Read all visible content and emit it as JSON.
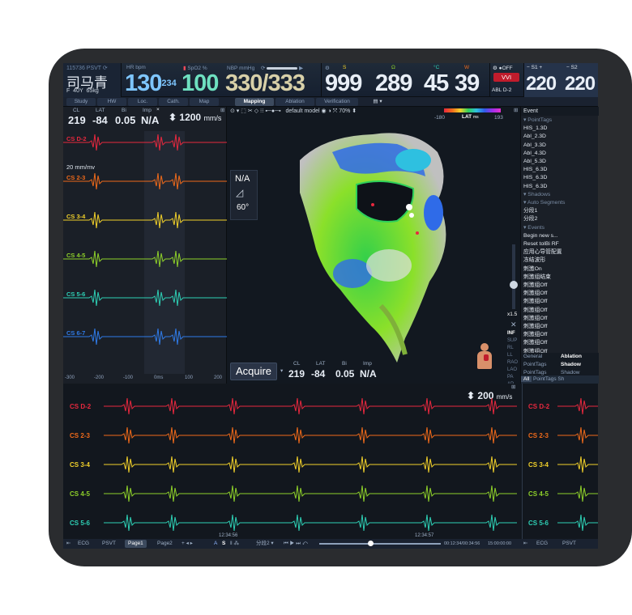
{
  "patient": {
    "id": "115736",
    "rhythm": "PSVT",
    "name": "司马青",
    "sex": "F",
    "age": "40Y",
    "weight": "65kg"
  },
  "vitals": {
    "hr_label": "HR",
    "hr_unit": "bpm",
    "hr_value": "130",
    "hr_sub": "234",
    "spo2_label": "SpO2",
    "spo2_unit": "%",
    "spo2_value": "100",
    "nbp_label": "NBP",
    "nbp_unit": "mmHg",
    "nbp_value": "330/333",
    "s_label": "S",
    "s_value": "999",
    "omega_label": "Ω",
    "omega_value": "289",
    "temp_label": "°C",
    "temp_value": "45",
    "w_label": "W",
    "w_value": "39"
  },
  "stim": {
    "off_label": "OFF",
    "mode_label": "VVI",
    "abl_label": "ABL D-2",
    "s1_label": "S1",
    "s1_value": "220",
    "s2_label": "S2",
    "s2_value": "220"
  },
  "left_tabs": [
    "Study",
    "HW",
    "Loc.",
    "Cath.",
    "Map"
  ],
  "center_tabs": [
    "Mapping",
    "Ablation",
    "Verification"
  ],
  "left_panel": {
    "cl_label": "CL",
    "lat_label": "LAT",
    "bi_label": "Bi",
    "imp_label": "Imp",
    "cl_value": "219",
    "lat_value": "-84",
    "bi_value": "0.05",
    "imp_value": "N/A",
    "speed_value": "1200",
    "speed_unit": "mm/s",
    "gain": "20 mm/mv",
    "x_ticks": [
      "-300",
      "-200",
      "-100",
      "0ms",
      "100",
      "200"
    ]
  },
  "channels": [
    {
      "name": "CS D-2",
      "color": "#e8283e"
    },
    {
      "name": "CS 2-3",
      "color": "#f06a1a"
    },
    {
      "name": "CS 3-4",
      "color": "#f2d12a"
    },
    {
      "name": "CS 4-5",
      "color": "#8fd12a"
    },
    {
      "name": "CS 5-6",
      "color": "#2ed0b5"
    },
    {
      "name": "CS 6-7",
      "color": "#2f7be8"
    }
  ],
  "map": {
    "model": "default model",
    "zoom": "70%",
    "lat_min": "-180",
    "lat_label": "LAT",
    "lat_unit": "ms",
    "lat_max": "193",
    "orientation": "N/A",
    "angle": "60°",
    "scale": "x1.5",
    "acquire_label": "Acquire",
    "acq_cl_value": "219",
    "acq_lat_value": "-84",
    "acq_bi_value": "0.05",
    "acq_imp_value": "N/A",
    "views": [
      "INF",
      "SUP",
      "RL",
      "LL",
      "RAO",
      "LAO",
      "PA",
      "AP"
    ]
  },
  "event_panel": {
    "header": "Event",
    "items": [
      {
        "text": "PointTags",
        "type": "section"
      },
      {
        "text": "HIS_1.3D"
      },
      {
        "text": "Abl_2.3D"
      },
      {
        "text": "Abl_3.3D"
      },
      {
        "text": "Abl_4.3D"
      },
      {
        "text": "Abl_5.3D"
      },
      {
        "text": "HIS_6.3D"
      },
      {
        "text": "HIS_6.3D"
      },
      {
        "text": "HIS_6.3D"
      },
      {
        "text": "Shadows",
        "type": "section"
      },
      {
        "text": "Auto Segments",
        "type": "section"
      },
      {
        "text": "分段1"
      },
      {
        "text": "分段2"
      },
      {
        "text": "Events",
        "type": "section"
      },
      {
        "text": "Begin new s..."
      },
      {
        "text": "Reset tolBi RF"
      },
      {
        "text": "应用心导管配置"
      },
      {
        "text": "冻结波形"
      },
      {
        "text": "刺激On"
      },
      {
        "text": "刺激组结束"
      },
      {
        "text": "刺激组Off"
      },
      {
        "text": "刺激组Off"
      },
      {
        "text": "刺激组Off"
      },
      {
        "text": "刺激组Off"
      },
      {
        "text": "刺激组Off"
      },
      {
        "text": "刺激组Off"
      },
      {
        "text": "刺激组Off"
      },
      {
        "text": "刺激组Off"
      },
      {
        "text": "刺激组Off"
      }
    ],
    "table": [
      {
        "c1": "General",
        "c2": "Ablation"
      },
      {
        "c1": "PointTags",
        "c2": "Shadow"
      },
      {
        "c1": "PointTags",
        "c2": "Shadow"
      }
    ],
    "footer_tabs": [
      "All",
      "PointTags",
      "Sh"
    ]
  },
  "bottom": {
    "speed_value": "200",
    "speed_unit": "mm/s",
    "time_left": "12:34:56",
    "time_right": "12:34:57",
    "segment": "分段2",
    "time_range": "00:12:34/00:34:56",
    "time_end": "15:00:00:00"
  },
  "bottom_bar": {
    "ecg": "ECG",
    "psvt": "PSVT",
    "page1": "Page1",
    "page2": "Page2",
    "a_label": "A",
    "s_label": "S",
    "ecg2": "ECG",
    "psvt2": "PSVT"
  }
}
